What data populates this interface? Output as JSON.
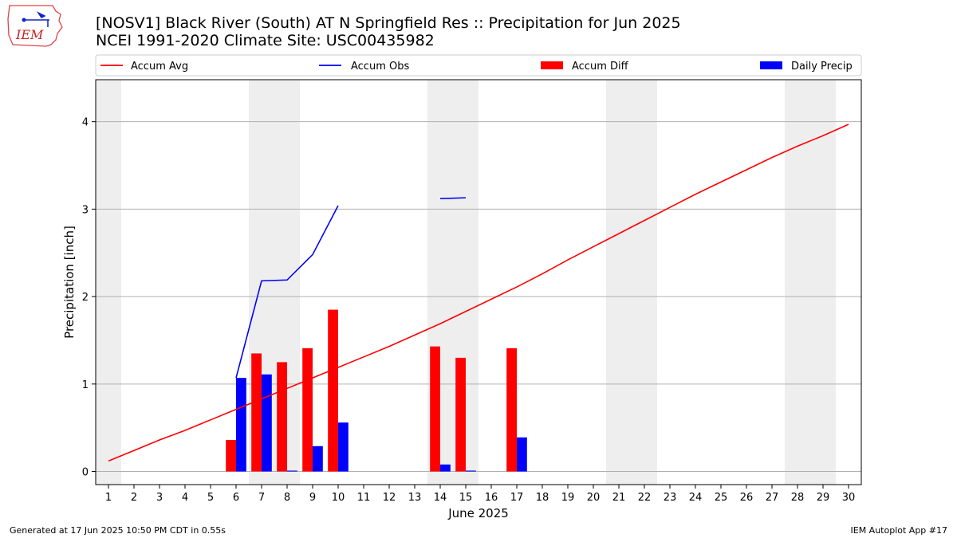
{
  "header": {
    "title_line1": "[NOSV1] Black River (South)  AT N Springfield Res :: Precipitation for Jun 2025",
    "title_line2": "NCEI 1991-2020 Climate Site: USC00435982",
    "logo_text": "IEM"
  },
  "footer": {
    "generated": "Generated at 17 Jun 2025 10:50 PM CDT in 0.55s",
    "app": "IEM Autoplot App #17"
  },
  "colors": {
    "accum_avg": "#ff0000",
    "accum_obs": "#0000ff",
    "accum_diff": "#ff0000",
    "daily_precip": "#0000ff",
    "weekend_shade": "#eeeeee",
    "grid": "#b0b0b0"
  },
  "chart_data": {
    "type": "bar",
    "xlabel": "June 2025",
    "ylabel": "Precipitation [inch]",
    "xlim": [
      0.5,
      30.5
    ],
    "ylim": [
      -0.15,
      4.48
    ],
    "yticks": [
      0,
      1,
      2,
      3,
      4
    ],
    "x": [
      1,
      2,
      3,
      4,
      5,
      6,
      7,
      8,
      9,
      10,
      11,
      12,
      13,
      14,
      15,
      16,
      17,
      18,
      19,
      20,
      21,
      22,
      23,
      24,
      25,
      26,
      27,
      28,
      29,
      30
    ],
    "grid": "horizontal",
    "legend_position": "top",
    "weekend_days": [
      1,
      7,
      8,
      14,
      15,
      21,
      22,
      28,
      29
    ],
    "series": [
      {
        "name": "Accum Avg",
        "kind": "line",
        "color": "#ff0000",
        "x": [
          1,
          2,
          3,
          4,
          5,
          6,
          7,
          8,
          9,
          10,
          11,
          12,
          13,
          14,
          15,
          16,
          17,
          18,
          19,
          20,
          21,
          22,
          23,
          24,
          25,
          26,
          27,
          28,
          29,
          30
        ],
        "values": [
          0.12,
          0.24,
          0.36,
          0.47,
          0.59,
          0.71,
          0.83,
          0.95,
          1.07,
          1.19,
          1.31,
          1.43,
          1.56,
          1.69,
          1.83,
          1.97,
          2.11,
          2.26,
          2.42,
          2.57,
          2.72,
          2.87,
          3.02,
          3.17,
          3.31,
          3.45,
          3.59,
          3.72,
          3.84,
          3.97
        ]
      },
      {
        "name": "Accum Obs",
        "kind": "line",
        "color": "#0000ff",
        "segments": [
          {
            "x": [
              6,
              7,
              8,
              9,
              10
            ],
            "values": [
              1.07,
              2.18,
              2.19,
              2.48,
              3.04
            ]
          },
          {
            "x": [
              14,
              15
            ],
            "values": [
              3.12,
              3.13
            ]
          }
        ]
      },
      {
        "name": "Accum Diff",
        "kind": "bar",
        "color": "#ff0000",
        "x": [
          6,
          7,
          8,
          9,
          10,
          14,
          15,
          17
        ],
        "values": [
          0.36,
          1.35,
          1.25,
          1.41,
          1.85,
          1.43,
          1.3,
          1.41
        ]
      },
      {
        "name": "Daily Precip",
        "kind": "bar",
        "color": "#0000ff",
        "x": [
          6,
          7,
          8,
          9,
          10,
          14,
          15,
          17
        ],
        "values": [
          1.07,
          1.11,
          0.01,
          0.29,
          0.56,
          0.08,
          0.01,
          0.39
        ]
      }
    ]
  }
}
